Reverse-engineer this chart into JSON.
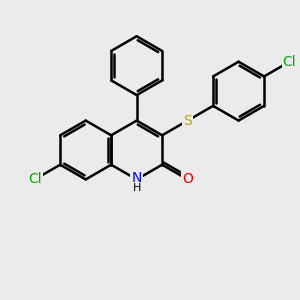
{
  "background_color": "#ebebeb",
  "bond_color": "#000000",
  "bond_width": 1.8,
  "atom_labels": {
    "N": {
      "color": "#0000ee",
      "fontsize": 10
    },
    "O": {
      "color": "#ee0000",
      "fontsize": 10
    },
    "S": {
      "color": "#bbaa00",
      "fontsize": 10
    },
    "Cl": {
      "color": "#00aa00",
      "fontsize": 10
    },
    "H": {
      "color": "#000000",
      "fontsize": 8
    }
  },
  "figsize": [
    3.0,
    3.0
  ],
  "dpi": 100
}
